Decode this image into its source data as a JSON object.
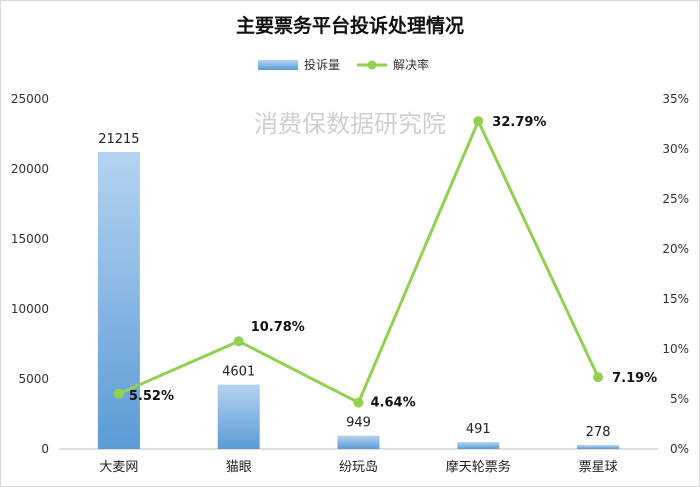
{
  "chart_data": {
    "type": "bar",
    "title": "主要票务平台投诉处理情况",
    "categories": [
      "大麦网",
      "猫眼",
      "纷玩岛",
      "摩天轮票务",
      "票星球"
    ],
    "series": [
      {
        "name": "投诉量",
        "type": "bar",
        "axis": "left",
        "values": [
          21215,
          4601,
          949,
          491,
          278
        ],
        "labels": [
          "21215",
          "4601",
          "949",
          "491",
          "278"
        ],
        "color": "#6fa8dc"
      },
      {
        "name": "解决率",
        "type": "line",
        "axis": "right",
        "values": [
          5.52,
          10.78,
          4.64,
          32.79,
          7.19
        ],
        "labels": [
          "5.52%",
          "10.78%",
          "4.64%",
          "32.79%",
          "7.19%"
        ],
        "color": "#92d050"
      }
    ],
    "y_left": {
      "ylim": [
        0,
        25000
      ],
      "ticks": [
        0,
        5000,
        10000,
        15000,
        20000,
        25000
      ],
      "tick_labels": [
        "0",
        "5000",
        "10000",
        "15000",
        "20000",
        "25000"
      ]
    },
    "y_right": {
      "ylim": [
        0,
        35
      ],
      "ticks": [
        0,
        5,
        10,
        15,
        20,
        25,
        30,
        35
      ],
      "tick_labels": [
        "0%",
        "5%",
        "10%",
        "15%",
        "20%",
        "25%",
        "30%",
        "35%"
      ]
    },
    "legend": {
      "position": "top-center",
      "entries": [
        "投诉量",
        "解决率"
      ]
    },
    "grid": false,
    "watermark": "消费保数据研究院"
  }
}
